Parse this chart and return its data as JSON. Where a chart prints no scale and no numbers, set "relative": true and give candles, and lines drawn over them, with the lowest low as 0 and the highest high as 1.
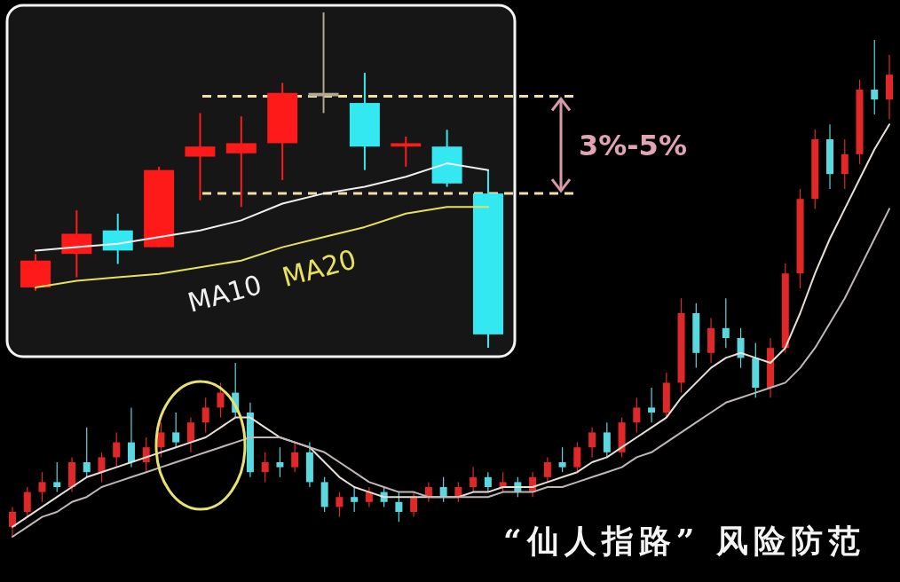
{
  "chart_data": [
    {
      "type": "candlestick",
      "relative": true,
      "categories": [
        null,
        null,
        null,
        null,
        null,
        null,
        null,
        null,
        null,
        null,
        null,
        null
      ],
      "ohlc": [
        [
          0.18,
          0.28,
          0.17,
          0.26
        ],
        [
          0.28,
          0.41,
          0.21,
          0.34
        ],
        [
          0.35,
          0.4,
          0.25,
          0.29
        ],
        [
          0.3,
          0.54,
          0.3,
          0.53
        ],
        [
          0.57,
          0.7,
          0.44,
          0.6
        ],
        [
          0.58,
          0.69,
          0.42,
          0.61
        ],
        [
          0.61,
          0.79,
          0.5,
          0.76
        ],
        [
          0.75,
          1,
          0.7,
          0.76
        ],
        [
          0.73,
          0.82,
          0.53,
          0.6
        ],
        [
          0.6,
          0.63,
          0.54,
          0.61
        ],
        [
          0.6,
          0.65,
          0.48,
          0.49
        ],
        [
          0.46,
          0.53,
          0,
          0.04
        ]
      ],
      "colors": [
        "#ff1a1a",
        "#ff1a1a",
        "#33e8f0",
        "#ff1a1a",
        "#ff1a1a",
        "#ff1a1a",
        "#ff1a1a",
        "#b0a890",
        "#33e8f0",
        "#ff1a1a",
        "#33e8f0",
        "#33e8f0"
      ],
      "series": [
        {
          "type": "line",
          "name": "MA10",
          "color": "#f0f0f0",
          "values": [
            0.29,
            0.3,
            0.31,
            0.33,
            0.35,
            0.38,
            0.43,
            0.46,
            0.48,
            0.51,
            0.55,
            0.53
          ]
        },
        {
          "type": "line",
          "name": "MA20",
          "color": "#e8e060",
          "values": [
            0.18,
            0.2,
            0.21,
            0.22,
            0.24,
            0.26,
            0.3,
            0.33,
            0.36,
            0.4,
            0.42,
            0.42
          ]
        }
      ],
      "legend": "bottom",
      "line_style": "solid",
      "ref_lines": [
        {
          "axis": "y",
          "value": 0.75,
          "color": "#f0e0a8",
          "line_style": "dashed"
        },
        {
          "axis": "y",
          "value": 0.46,
          "color": "#f0e0a8",
          "line_style": "dashed"
        }
      ],
      "annotations": [
        "3%-5%"
      ]
    },
    {
      "type": "candlestick",
      "relative": true,
      "title": "“仙人指路” 风险防范",
      "categories": [
        null,
        null,
        null,
        null,
        null,
        null,
        null,
        null,
        null,
        null,
        null,
        null,
        null,
        null,
        null,
        null,
        null,
        null,
        null,
        null,
        null,
        null,
        null,
        null,
        null,
        null,
        null,
        null,
        null,
        null,
        null,
        null,
        null,
        null,
        null,
        null,
        null,
        null,
        null,
        null,
        null,
        null,
        null,
        null,
        null,
        null,
        null,
        null,
        null,
        null,
        null,
        null,
        null,
        null,
        null,
        null,
        null,
        null,
        null,
        null
      ],
      "ohlc": [
        [
          0.02,
          0.06,
          0,
          0.05
        ],
        [
          0.05,
          0.1,
          0.04,
          0.09
        ],
        [
          0.09,
          0.13,
          0.07,
          0.11
        ],
        [
          0.11,
          0.15,
          0.09,
          0.1
        ],
        [
          0.1,
          0.16,
          0.09,
          0.15
        ],
        [
          0.15,
          0.22,
          0.12,
          0.13
        ],
        [
          0.13,
          0.17,
          0.11,
          0.16
        ],
        [
          0.16,
          0.21,
          0.14,
          0.19
        ],
        [
          0.19,
          0.26,
          0.14,
          0.15
        ],
        [
          0.15,
          0.2,
          0.13,
          0.18
        ],
        [
          0.18,
          0.23,
          0.16,
          0.21
        ],
        [
          0.21,
          0.25,
          0.18,
          0.19
        ],
        [
          0.19,
          0.24,
          0.17,
          0.23
        ],
        [
          0.23,
          0.28,
          0.21,
          0.26
        ],
        [
          0.26,
          0.31,
          0.24,
          0.29
        ],
        [
          0.29,
          0.35,
          0.24,
          0.25
        ],
        [
          0.25,
          0.27,
          0.12,
          0.13
        ],
        [
          0.13,
          0.17,
          0.11,
          0.15
        ],
        [
          0.15,
          0.18,
          0.12,
          0.14
        ],
        [
          0.14,
          0.19,
          0.13,
          0.17
        ],
        [
          0.17,
          0.19,
          0.1,
          0.11
        ],
        [
          0.11,
          0.12,
          0.05,
          0.06
        ],
        [
          0.06,
          0.09,
          0.04,
          0.08
        ],
        [
          0.08,
          0.1,
          0.05,
          0.07
        ],
        [
          0.07,
          0.1,
          0.06,
          0.09
        ],
        [
          0.09,
          0.1,
          0.06,
          0.07
        ],
        [
          0.07,
          0.09,
          0.03,
          0.05
        ],
        [
          0.05,
          0.09,
          0.04,
          0.08
        ],
        [
          0.08,
          0.11,
          0.07,
          0.1
        ],
        [
          0.1,
          0.12,
          0.07,
          0.08
        ],
        [
          0.08,
          0.11,
          0.07,
          0.1
        ],
        [
          0.1,
          0.14,
          0.09,
          0.12
        ],
        [
          0.12,
          0.13,
          0.09,
          0.1
        ],
        [
          0.1,
          0.13,
          0.09,
          0.11
        ],
        [
          0.11,
          0.12,
          0.08,
          0.09
        ],
        [
          0.09,
          0.13,
          0.08,
          0.12
        ],
        [
          0.12,
          0.16,
          0.11,
          0.15
        ],
        [
          0.15,
          0.18,
          0.13,
          0.14
        ],
        [
          0.14,
          0.19,
          0.13,
          0.18
        ],
        [
          0.18,
          0.22,
          0.16,
          0.21
        ],
        [
          0.21,
          0.23,
          0.16,
          0.17
        ],
        [
          0.17,
          0.24,
          0.16,
          0.23
        ],
        [
          0.23,
          0.28,
          0.21,
          0.26
        ],
        [
          0.26,
          0.3,
          0.23,
          0.25
        ],
        [
          0.25,
          0.33,
          0.24,
          0.31
        ],
        [
          0.31,
          0.48,
          0.29,
          0.45
        ],
        [
          0.45,
          0.47,
          0.34,
          0.37
        ],
        [
          0.37,
          0.44,
          0.35,
          0.42
        ],
        [
          0.42,
          0.48,
          0.38,
          0.4
        ],
        [
          0.4,
          0.42,
          0.34,
          0.36
        ],
        [
          0.36,
          0.39,
          0.28,
          0.3
        ],
        [
          0.3,
          0.4,
          0.28,
          0.38
        ],
        [
          0.38,
          0.55,
          0.37,
          0.53
        ],
        [
          0.53,
          0.7,
          0.5,
          0.68
        ],
        [
          0.68,
          0.82,
          0.66,
          0.8
        ],
        [
          0.8,
          0.83,
          0.7,
          0.73
        ],
        [
          0.73,
          0.8,
          0.7,
          0.77
        ],
        [
          0.77,
          0.92,
          0.75,
          0.9
        ],
        [
          0.9,
          1,
          0.85,
          0.88
        ],
        [
          0.88,
          0.97,
          0.84,
          0.93
        ]
      ],
      "colors": [
        "#e02828",
        "#e02828",
        "#e02828",
        "#5ad8e0",
        "#e02828",
        "#5ad8e0",
        "#e02828",
        "#e02828",
        "#5ad8e0",
        "#e02828",
        "#e02828",
        "#5ad8e0",
        "#e02828",
        "#e02828",
        "#e02828",
        "#5ad8e0",
        "#5ad8e0",
        "#e02828",
        "#5ad8e0",
        "#e02828",
        "#5ad8e0",
        "#5ad8e0",
        "#e02828",
        "#5ad8e0",
        "#e02828",
        "#5ad8e0",
        "#5ad8e0",
        "#e02828",
        "#e02828",
        "#5ad8e0",
        "#e02828",
        "#e02828",
        "#5ad8e0",
        "#e02828",
        "#5ad8e0",
        "#e02828",
        "#e02828",
        "#5ad8e0",
        "#e02828",
        "#e02828",
        "#5ad8e0",
        "#e02828",
        "#e02828",
        "#5ad8e0",
        "#e02828",
        "#e02828",
        "#5ad8e0",
        "#e02828",
        "#5ad8e0",
        "#5ad8e0",
        "#5ad8e0",
        "#e02828",
        "#e02828",
        "#e02828",
        "#e02828",
        "#5ad8e0",
        "#e02828",
        "#e02828",
        "#5ad8e0",
        "#e02828"
      ],
      "series": [
        {
          "type": "line",
          "color": "#e8e0d8",
          "values": [
            0.02,
            0.04,
            0.06,
            0.08,
            0.1,
            0.12,
            0.13,
            0.14,
            0.15,
            0.16,
            0.17,
            0.18,
            0.19,
            0.2,
            0.22,
            0.24,
            0.24,
            0.22,
            0.2,
            0.19,
            0.18,
            0.15,
            0.12,
            0.1,
            0.09,
            0.08,
            0.08,
            0.08,
            0.08,
            0.08,
            0.08,
            0.09,
            0.09,
            0.1,
            0.1,
            0.1,
            0.11,
            0.12,
            0.13,
            0.15,
            0.16,
            0.18,
            0.2,
            0.22,
            0.24,
            0.28,
            0.31,
            0.34,
            0.36,
            0.37,
            0.36,
            0.35,
            0.38,
            0.45,
            0.53,
            0.6,
            0.66,
            0.72,
            0.78,
            0.83
          ]
        },
        {
          "type": "line",
          "color": "#c0b8b8",
          "values": [
            0,
            0.02,
            0.04,
            0.05,
            0.07,
            0.08,
            0.1,
            0.11,
            0.12,
            0.13,
            0.14,
            0.15,
            0.16,
            0.17,
            0.18,
            0.19,
            0.2,
            0.2,
            0.2,
            0.19,
            0.18,
            0.17,
            0.15,
            0.13,
            0.11,
            0.1,
            0.09,
            0.09,
            0.08,
            0.08,
            0.08,
            0.08,
            0.08,
            0.09,
            0.09,
            0.09,
            0.1,
            0.1,
            0.11,
            0.12,
            0.13,
            0.14,
            0.16,
            0.17,
            0.19,
            0.21,
            0.23,
            0.25,
            0.27,
            0.28,
            0.29,
            0.3,
            0.31,
            0.34,
            0.38,
            0.43,
            0.48,
            0.54,
            0.6,
            0.66
          ]
        }
      ],
      "line_style": "solid"
    }
  ]
}
